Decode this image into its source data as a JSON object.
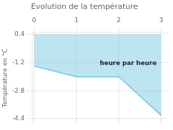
{
  "chart_data": {
    "type": "line",
    "title": "Evolution de la température",
    "ylabel": "Température en °C",
    "x": [
      0,
      1,
      2,
      3
    ],
    "values": [
      -1.4,
      -2.0,
      -2.0,
      -4.2
    ],
    "fill_top": 0.4,
    "color": "#6cc5de",
    "xlim": [
      -0.05,
      3.15
    ],
    "xticks": [
      0,
      1,
      2,
      3
    ],
    "ylim": [
      -4.7,
      0.55
    ],
    "yticks": [
      0.4,
      -1.2,
      -2.8,
      -4.4
    ],
    "grid": true,
    "annotations": [
      {
        "text": "heure par heure",
        "x": 1.55,
        "y": -1.05
      }
    ]
  }
}
